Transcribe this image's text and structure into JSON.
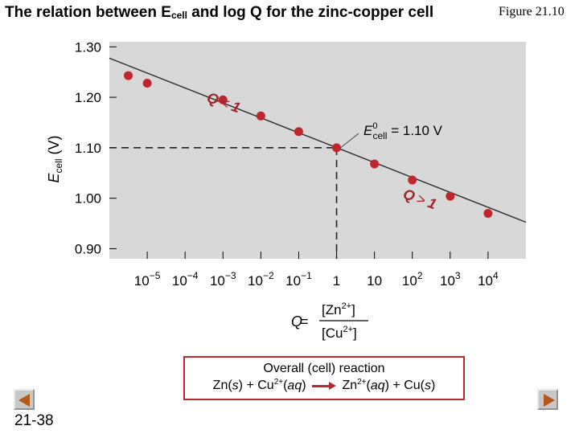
{
  "slide": {
    "title": {
      "main": "The relation between E",
      "sub": "cell",
      "rest": " and log Q for the zinc-copper cell"
    },
    "figure_label": "Figure 21.10",
    "slide_number": "21-38",
    "prev_icon": "prev-arrow-icon",
    "next_icon": "next-arrow-icon"
  },
  "reaction": {
    "heading": "Overall (cell) reaction",
    "left_prefix": "Zn(",
    "left_state": "s",
    "left_mid": ") + Cu",
    "left_charge": "2+",
    "left_aq_open": "(",
    "left_aq": "aq",
    "left_aq_close": ")",
    "right_prefix": "Zn",
    "right_charge": "2+",
    "right_mid": "(",
    "right_aq": "aq",
    "right_mid2": ") + Cu(",
    "right_state": "s",
    "right_close": ")",
    "arrow_icon": "reaction-arrow-icon"
  },
  "colors": {
    "plot_bg": "#d8d8d8",
    "point": "#c0272d",
    "annotation": "#a3222b",
    "line": "#2a2a2a",
    "box_border": "#c0272d"
  },
  "chart_data": {
    "type": "scatter",
    "xscale": "log",
    "x": [
      3.16e-06,
      1e-05,
      0.001,
      0.01,
      0.1,
      1,
      10,
      100,
      1000,
      10000
    ],
    "y": [
      1.243,
      1.228,
      1.195,
      1.163,
      1.132,
      1.1,
      1.068,
      1.036,
      1.004,
      0.97
    ],
    "fit_line": {
      "x": [
        1e-06,
        100000
      ],
      "y": [
        1.2775,
        0.9525
      ]
    },
    "xlim": [
      1e-06,
      100000
    ],
    "ylim": [
      0.88,
      1.31
    ],
    "yticks": [
      0.9,
      1.0,
      1.1,
      1.2,
      1.3
    ],
    "ytick_labels": [
      "0.90",
      "1.00",
      "1.10",
      "1.20",
      "1.30"
    ],
    "xtick_bases": [
      "10",
      "10",
      "10",
      "10",
      "10",
      "1",
      "10",
      "10",
      "10",
      "10"
    ],
    "xtick_exps": [
      "−5",
      "−4",
      "−3",
      "−2",
      "−1",
      "",
      "",
      "2",
      "3",
      "4"
    ],
    "xtick_values": [
      1e-05,
      0.0001,
      0.001,
      0.01,
      0.1,
      1,
      10,
      100,
      1000,
      10000
    ],
    "ylabel": {
      "main": "E",
      "sub": "cell",
      "unit": " (V)"
    },
    "xlabel": {
      "q": "Q",
      "eq": " =",
      "num": "[Zn",
      "num_charge": "2+",
      "num_close": "]",
      "den": "[Cu",
      "den_charge": "2+",
      "den_close": "]"
    },
    "reference": {
      "x": 1,
      "y": 1.1
    },
    "annotations": {
      "std": {
        "E": "E",
        "sup": "0",
        "sub": "cell",
        "val": " = 1.10 V"
      },
      "q_lt": {
        "q": "Q",
        "op": "<",
        "n": "1"
      },
      "q_gt": {
        "q": "Q",
        "op": ">",
        "n": "1"
      }
    },
    "grid": false
  }
}
